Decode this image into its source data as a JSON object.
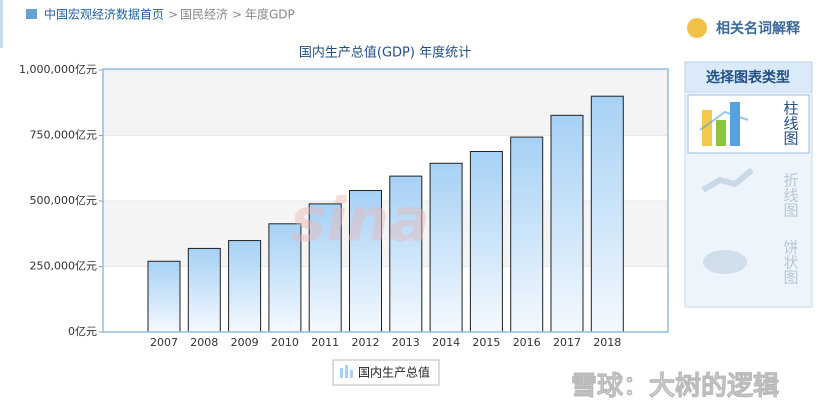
{
  "breadcrumb": {
    "items": [
      "中国宏观经济数据首页",
      "国民经济",
      "年度GDP"
    ],
    "separator": ">"
  },
  "sidebar": {
    "glossary": "相关名词解释",
    "chart_type_title": "选择图表类型",
    "chart_types": [
      "柱线图",
      "折线图",
      "饼状图"
    ]
  },
  "background_watermark": "sina",
  "watermark": "雪球：大树的逻辑",
  "chart_data": {
    "type": "bar",
    "title": "国内生产总值(GDP) 年度统计",
    "categories": [
      "2007",
      "2008",
      "2009",
      "2010",
      "2011",
      "2012",
      "2013",
      "2014",
      "2015",
      "2016",
      "2017",
      "2018"
    ],
    "series": [
      {
        "name": "国内生产总值",
        "color": "#a9d3f5",
        "values": [
          270000,
          319000,
          349000,
          413000,
          489000,
          540000,
          595000,
          644000,
          689000,
          744000,
          827000,
          900000
        ]
      }
    ],
    "ylim": [
      0,
      1000000
    ],
    "yticks": [
      {
        "value": 0,
        "label": "0亿元"
      },
      {
        "value": 250000,
        "label": "250,000亿元"
      },
      {
        "value": 500000,
        "label": "500,000亿元"
      },
      {
        "value": 750000,
        "label": "750,000亿元"
      },
      {
        "value": 1000000,
        "label": "1,000,000亿元"
      }
    ],
    "grid": true,
    "legend": "bottom"
  }
}
